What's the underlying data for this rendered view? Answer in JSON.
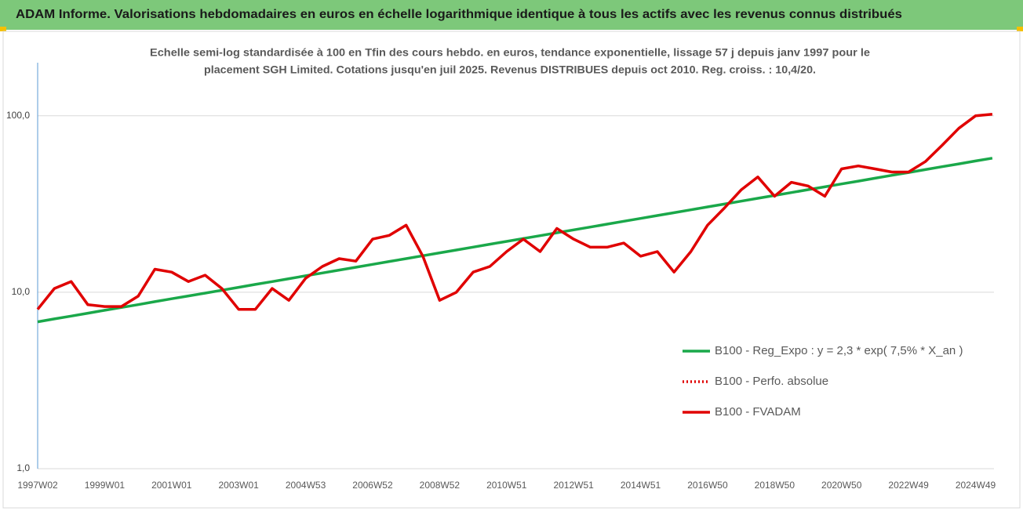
{
  "chart_data": {
    "type": "line",
    "title": "ADAM Informe. Valorisations hebdomadaires en euros en échelle logarithmique identique à tous les actifs avec les revenus connus distribués",
    "subtitle": [
      "Echelle semi-log standardisée à 100 en Tfin des cours hebdo. en euros, tendance exponentielle, lissage 57 j depuis janv 1997 pour le",
      "placement SGH Limited. Cotations jusqu'en juil 2025. Revenus DISTRIBUES depuis oct 2010. Reg. croiss. : 10,4/20."
    ],
    "categories": [
      "1997W02",
      null,
      null,
      null,
      "1999W01",
      null,
      null,
      null,
      "2001W01",
      null,
      null,
      null,
      "2003W01",
      null,
      null,
      null,
      "2004W53",
      null,
      null,
      null,
      "2006W52",
      null,
      null,
      null,
      "2008W52",
      null,
      null,
      null,
      "2010W51",
      null,
      null,
      null,
      "2012W51",
      null,
      null,
      null,
      "2014W51",
      null,
      null,
      null,
      "2016W50",
      null,
      null,
      null,
      "2018W50",
      null,
      null,
      null,
      "2020W50",
      null,
      null,
      null,
      "2022W49",
      null,
      null,
      null,
      "2024W49",
      null
    ],
    "series": [
      {
        "name": "B100 - Reg_Expo : y = 2,3 * exp( 7,5% *  X_an )",
        "color": "#1aa84a",
        "dash": "solid",
        "values": [
          6.8,
          7.06,
          7.33,
          7.61,
          7.9,
          8.2,
          8.51,
          8.84,
          9.18,
          9.53,
          9.89,
          10.27,
          10.66,
          11.07,
          11.49,
          11.93,
          12.39,
          12.86,
          13.35,
          13.86,
          14.39,
          14.94,
          15.51,
          16.1,
          16.72,
          17.36,
          18.02,
          18.71,
          19.42,
          20.16,
          20.93,
          21.73,
          22.56,
          23.42,
          24.32,
          25.25,
          26.21,
          27.21,
          28.25,
          29.33,
          30.45,
          31.61,
          32.82,
          34.07,
          35.37,
          36.72,
          38.13,
          39.58,
          41.09,
          42.66,
          44.29,
          45.98,
          47.74,
          49.56,
          51.45,
          53.42,
          55.46,
          57.57
        ]
      },
      {
        "name": "B100 - Perfo. absolue",
        "color": "#e00000",
        "dash": "dotted",
        "values": [
          null,
          null,
          null,
          null,
          null,
          null,
          null,
          null,
          null,
          null,
          null,
          null,
          null,
          null,
          null,
          null,
          null,
          null,
          null,
          null,
          null,
          null,
          null,
          null,
          null,
          null,
          null,
          null,
          null,
          null,
          null,
          null,
          null,
          null,
          null,
          null,
          null,
          null,
          null,
          null,
          null,
          null,
          null,
          null,
          null,
          null,
          null,
          null,
          null,
          null,
          null,
          null,
          null,
          null,
          null,
          null,
          null,
          null
        ]
      },
      {
        "name": "B100 - FVADAM",
        "color": "#e00000",
        "dash": "solid",
        "values": [
          8.0,
          10.5,
          11.5,
          8.5,
          8.3,
          8.3,
          9.5,
          13.5,
          13,
          11.5,
          12.5,
          10.5,
          8.0,
          8.0,
          10.5,
          9,
          12,
          14,
          15.5,
          15,
          20,
          21,
          24,
          16,
          9,
          10,
          13,
          14,
          17,
          20,
          17,
          23,
          20,
          18,
          18,
          19,
          16,
          17,
          13,
          17,
          24,
          30,
          38,
          45,
          35,
          42,
          40,
          35,
          50,
          52,
          50,
          48,
          48,
          55,
          68,
          85,
          100,
          102
        ]
      }
    ],
    "log_y": true,
    "ylim": [
      1,
      200
    ],
    "yticks": [
      {
        "value": 1,
        "label": "1,0"
      },
      {
        "value": 10,
        "label": "10,0"
      },
      {
        "value": 100,
        "label": "100,0"
      }
    ],
    "grid": true,
    "legend": "right"
  }
}
